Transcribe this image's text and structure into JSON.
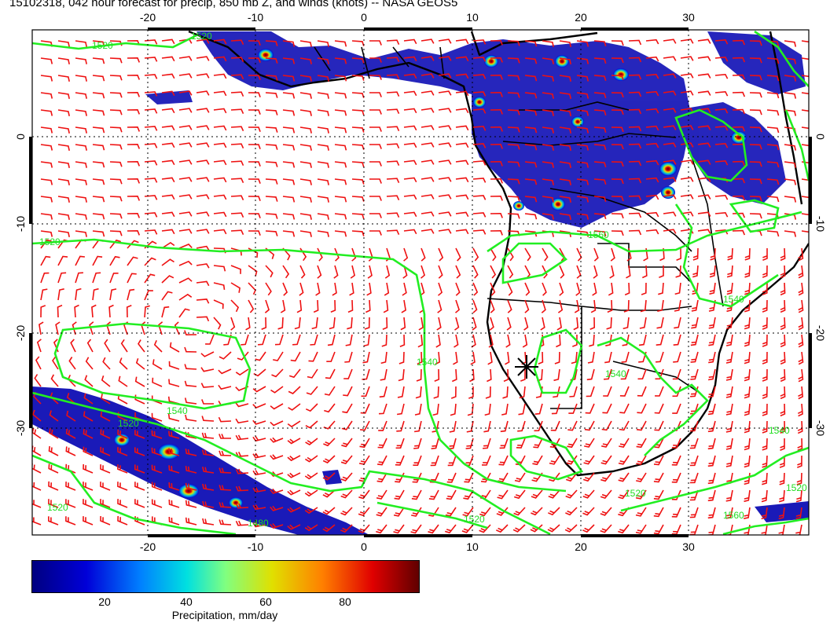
{
  "title": "15102318, 042 hour forecast for precip, 850 mb Z, and winds (knots) -- NASA GEOS5",
  "map": {
    "lon_ticks": [
      "-20",
      "-10",
      "0",
      "10",
      "20",
      "30"
    ],
    "lat_ticks": [
      "0",
      "-10",
      "-20",
      "-30"
    ],
    "contour_labels": [
      "1520",
      "1520",
      "1540",
      "1540",
      "1520",
      "1520",
      "1540",
      "1520",
      "1560",
      "1540",
      "1520",
      "1480",
      "1520",
      "1520",
      "1560",
      "1540"
    ],
    "colors": {
      "contour": "#22ee22",
      "wind_barb": "#ee1111",
      "coastline": "#000000",
      "grid": "#000000",
      "marker": "#000000"
    }
  },
  "colorbar": {
    "labels": [
      "20",
      "40",
      "60",
      "80"
    ],
    "title": "Precipitation, mm/day",
    "range": [
      0,
      100
    ],
    "colors": [
      "#000080",
      "#0000d8",
      "#0080ff",
      "#00e0e0",
      "#80ff80",
      "#e0e000",
      "#ff8000",
      "#e00000",
      "#600000"
    ]
  }
}
